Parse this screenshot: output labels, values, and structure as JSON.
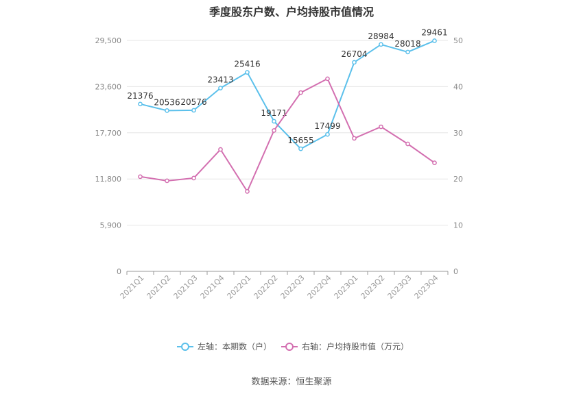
{
  "chart_data": {
    "type": "line",
    "title": "季度股东户数、户均持股市值情况",
    "categories": [
      "2021Q1",
      "2021Q2",
      "2021Q3",
      "2021Q4",
      "2022Q1",
      "2022Q2",
      "2022Q3",
      "2022Q4",
      "2023Q1",
      "2023Q2",
      "2023Q3",
      "2023Q4"
    ],
    "series": [
      {
        "name": "左轴：本期数（户）",
        "axis": "left",
        "color": "#5bc0eb",
        "values": [
          21376,
          20536,
          20576,
          23413,
          25416,
          19171,
          15655,
          17499,
          26704,
          28984,
          28018,
          29461
        ],
        "labels": [
          "21376",
          "20536",
          "20576",
          "23413",
          "25416",
          "19171",
          "15655",
          "17499",
          "26704",
          "28984",
          "28018",
          "29461"
        ]
      },
      {
        "name": "右轴：户均持股市值（万元）",
        "axis": "right",
        "color": "#d36fb0",
        "values": [
          20.5,
          19.6,
          20.2,
          26.4,
          17.3,
          30.5,
          38.7,
          41.7,
          28.8,
          31.3,
          27.6,
          23.5
        ]
      }
    ],
    "y_left": {
      "range": [
        0,
        29500
      ],
      "ticks": [
        "0",
        "5,900",
        "11,800",
        "17,700",
        "23,600",
        "29,500"
      ]
    },
    "y_right": {
      "range": [
        0,
        50
      ],
      "ticks": [
        "0",
        "10",
        "20",
        "30",
        "40",
        "50"
      ]
    },
    "grid": true,
    "legend_position": "bottom"
  },
  "source": "数据来源：恒生聚源"
}
